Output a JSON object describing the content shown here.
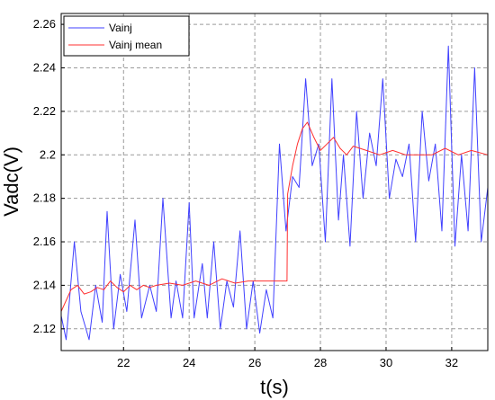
{
  "chart_data": {
    "type": "line",
    "title": "",
    "xlabel": "t(s)",
    "ylabel": "Vadc(V)",
    "xlim": [
      20.1,
      33.1
    ],
    "ylim": [
      2.11,
      2.265
    ],
    "xticks": [
      "22",
      "24",
      "26",
      "28",
      "30",
      "32"
    ],
    "xtick_values": [
      22,
      24,
      26,
      28,
      30,
      32
    ],
    "yticks": [
      "2.12",
      "2.14",
      "2.16",
      "2.18",
      "2.2",
      "2.22",
      "2.24",
      "2.26"
    ],
    "ytick_values": [
      2.12,
      2.14,
      2.16,
      2.18,
      2.2,
      2.22,
      2.24,
      2.26
    ],
    "grid": true,
    "legend_position": "top-left",
    "series": [
      {
        "name": "Vainj",
        "color": "#4040ff",
        "x": [
          20.1,
          20.25,
          20.5,
          20.7,
          20.95,
          21.15,
          21.35,
          21.5,
          21.7,
          21.9,
          22.1,
          22.35,
          22.55,
          22.8,
          23.0,
          23.2,
          23.45,
          23.6,
          23.8,
          24.0,
          24.15,
          24.4,
          24.55,
          24.75,
          24.95,
          25.15,
          25.35,
          25.55,
          25.75,
          25.95,
          26.15,
          26.35,
          26.55,
          26.75,
          26.95,
          27.15,
          27.35,
          27.55,
          27.75,
          27.95,
          28.15,
          28.35,
          28.55,
          28.7,
          28.9,
          29.1,
          29.3,
          29.5,
          29.7,
          29.9,
          30.1,
          30.3,
          30.5,
          30.7,
          30.9,
          31.1,
          31.3,
          31.5,
          31.7,
          31.9,
          32.1,
          32.3,
          32.5,
          32.7,
          32.9,
          33.1
        ],
        "y": [
          2.126,
          2.115,
          2.16,
          2.128,
          2.115,
          2.14,
          2.123,
          2.174,
          2.12,
          2.145,
          2.128,
          2.17,
          2.125,
          2.14,
          2.128,
          2.18,
          2.125,
          2.142,
          2.125,
          2.178,
          2.125,
          2.15,
          2.125,
          2.16,
          2.12,
          2.142,
          2.13,
          2.165,
          2.12,
          2.142,
          2.118,
          2.138,
          2.125,
          2.205,
          2.165,
          2.19,
          2.185,
          2.235,
          2.195,
          2.205,
          2.16,
          2.235,
          2.17,
          2.2,
          2.158,
          2.22,
          2.18,
          2.21,
          2.195,
          2.235,
          2.18,
          2.198,
          2.19,
          2.205,
          2.16,
          2.22,
          2.188,
          2.205,
          2.165,
          2.25,
          2.158,
          2.2,
          2.165,
          2.24,
          2.16,
          2.185
        ]
      },
      {
        "name": "Vainj mean",
        "color": "#ff3030",
        "x": [
          20.1,
          20.4,
          20.6,
          20.8,
          21.0,
          21.2,
          21.4,
          21.6,
          21.8,
          22.0,
          22.2,
          22.4,
          22.6,
          22.8,
          23.0,
          23.4,
          23.8,
          24.2,
          24.6,
          25.0,
          25.4,
          25.8,
          26.2,
          26.6,
          26.98,
          27.0,
          27.15,
          27.3,
          27.45,
          27.6,
          27.8,
          28.0,
          28.2,
          28.4,
          28.6,
          28.8,
          29.0,
          29.4,
          29.8,
          30.2,
          30.6,
          31.0,
          31.4,
          31.8,
          32.2,
          32.6,
          33.1
        ],
        "y": [
          2.128,
          2.138,
          2.14,
          2.136,
          2.137,
          2.139,
          2.138,
          2.142,
          2.139,
          2.137,
          2.14,
          2.138,
          2.14,
          2.139,
          2.14,
          2.141,
          2.14,
          2.142,
          2.14,
          2.143,
          2.141,
          2.142,
          2.142,
          2.142,
          2.142,
          2.182,
          2.195,
          2.205,
          2.212,
          2.215,
          2.208,
          2.202,
          2.205,
          2.208,
          2.203,
          2.2,
          2.204,
          2.202,
          2.2,
          2.202,
          2.2,
          2.2,
          2.2,
          2.203,
          2.2,
          2.202,
          2.2
        ]
      }
    ]
  }
}
